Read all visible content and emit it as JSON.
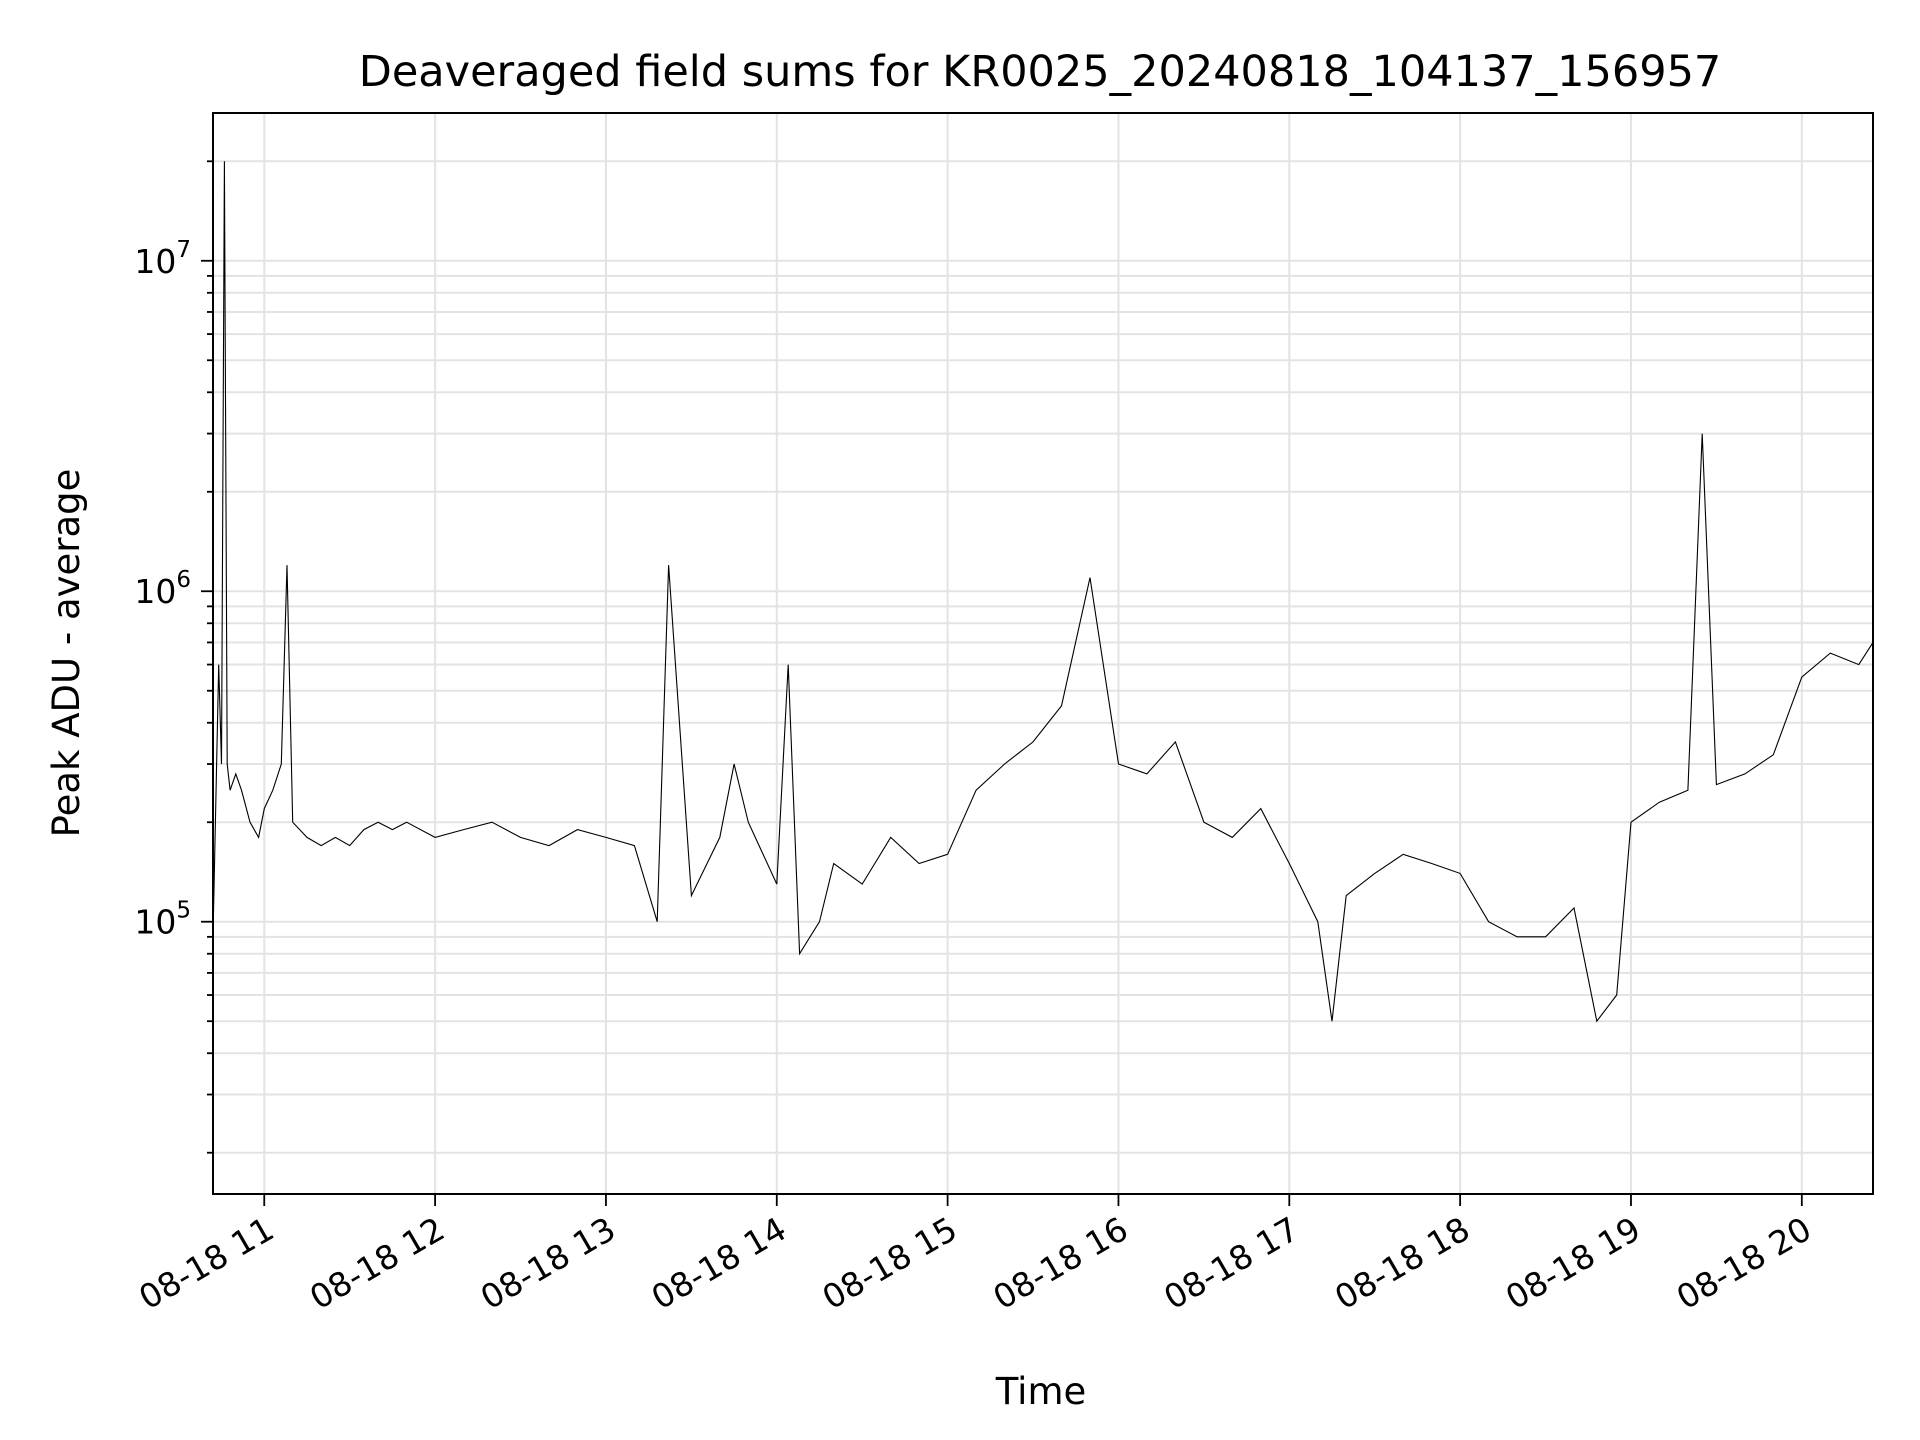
{
  "chart_data": {
    "type": "line",
    "title": "Deaveraged field sums for KR0025_20240818_104137_156957",
    "xlabel": "Time",
    "ylabel": "Peak ADU - average",
    "y_scale": "log",
    "ylim": [
      15000,
      28000000
    ],
    "xlim": [
      "2024-08-18T10:42",
      "2024-08-18T20:25"
    ],
    "grid": true,
    "legend": "none",
    "line_color": "#000000",
    "x_ticks": [
      {
        "time": "2024-08-18T11:00",
        "label": "08-18 11"
      },
      {
        "time": "2024-08-18T12:00",
        "label": "08-18 12"
      },
      {
        "time": "2024-08-18T13:00",
        "label": "08-18 13"
      },
      {
        "time": "2024-08-18T14:00",
        "label": "08-18 14"
      },
      {
        "time": "2024-08-18T15:00",
        "label": "08-18 15"
      },
      {
        "time": "2024-08-18T16:00",
        "label": "08-18 16"
      },
      {
        "time": "2024-08-18T17:00",
        "label": "08-18 17"
      },
      {
        "time": "2024-08-18T18:00",
        "label": "08-18 18"
      },
      {
        "time": "2024-08-18T19:00",
        "label": "08-18 19"
      },
      {
        "time": "2024-08-18T20:00",
        "label": "08-18 20"
      }
    ],
    "y_ticks": [
      {
        "value": 100000,
        "base": "10",
        "exp": "5"
      },
      {
        "value": 1000000,
        "base": "10",
        "exp": "6"
      },
      {
        "value": 10000000,
        "base": "10",
        "exp": "7"
      }
    ],
    "series": [
      {
        "x": [
          "2024-08-18T10:42",
          "2024-08-18T10:44",
          "2024-08-18T10:45",
          "2024-08-18T10:46",
          "2024-08-18T10:47",
          "2024-08-18T10:48",
          "2024-08-18T10:50",
          "2024-08-18T10:52",
          "2024-08-18T10:55",
          "2024-08-18T10:58",
          "2024-08-18T11:00",
          "2024-08-18T11:03",
          "2024-08-18T11:06",
          "2024-08-18T11:08",
          "2024-08-18T11:10",
          "2024-08-18T11:15",
          "2024-08-18T11:20",
          "2024-08-18T11:25",
          "2024-08-18T11:30",
          "2024-08-18T11:35",
          "2024-08-18T11:40",
          "2024-08-18T11:45",
          "2024-08-18T11:50",
          "2024-08-18T12:00",
          "2024-08-18T12:10",
          "2024-08-18T12:20",
          "2024-08-18T12:30",
          "2024-08-18T12:40",
          "2024-08-18T12:50",
          "2024-08-18T13:00",
          "2024-08-18T13:10",
          "2024-08-18T13:18",
          "2024-08-18T13:22",
          "2024-08-18T13:30",
          "2024-08-18T13:40",
          "2024-08-18T13:45",
          "2024-08-18T13:50",
          "2024-08-18T14:00",
          "2024-08-18T14:04",
          "2024-08-18T14:08",
          "2024-08-18T14:15",
          "2024-08-18T14:20",
          "2024-08-18T14:30",
          "2024-08-18T14:40",
          "2024-08-18T14:50",
          "2024-08-18T15:00",
          "2024-08-18T15:10",
          "2024-08-18T15:20",
          "2024-08-18T15:30",
          "2024-08-18T15:40",
          "2024-08-18T15:50",
          "2024-08-18T16:00",
          "2024-08-18T16:10",
          "2024-08-18T16:20",
          "2024-08-18T16:30",
          "2024-08-18T16:40",
          "2024-08-18T16:50",
          "2024-08-18T17:00",
          "2024-08-18T17:10",
          "2024-08-18T17:15",
          "2024-08-18T17:20",
          "2024-08-18T17:30",
          "2024-08-18T17:40",
          "2024-08-18T17:50",
          "2024-08-18T18:00",
          "2024-08-18T18:10",
          "2024-08-18T18:20",
          "2024-08-18T18:30",
          "2024-08-18T18:40",
          "2024-08-18T18:48",
          "2024-08-18T18:55",
          "2024-08-18T19:00",
          "2024-08-18T19:10",
          "2024-08-18T19:20",
          "2024-08-18T19:25",
          "2024-08-18T19:30",
          "2024-08-18T19:40",
          "2024-08-18T19:50",
          "2024-08-18T20:00",
          "2024-08-18T20:10",
          "2024-08-18T20:20",
          "2024-08-18T20:25"
        ],
        "y": [
          90000,
          600000,
          300000,
          20000000,
          300000,
          250000,
          280000,
          250000,
          200000,
          180000,
          220000,
          250000,
          300000,
          1200000,
          200000,
          180000,
          170000,
          180000,
          170000,
          190000,
          200000,
          190000,
          200000,
          180000,
          190000,
          200000,
          180000,
          170000,
          190000,
          180000,
          170000,
          100000,
          1200000,
          120000,
          180000,
          300000,
          200000,
          130000,
          600000,
          80000,
          100000,
          150000,
          130000,
          180000,
          150000,
          160000,
          250000,
          300000,
          350000,
          450000,
          1100000,
          300000,
          280000,
          350000,
          200000,
          180000,
          220000,
          150000,
          100000,
          50000,
          120000,
          140000,
          160000,
          150000,
          140000,
          100000,
          90000,
          90000,
          110000,
          50000,
          60000,
          200000,
          230000,
          250000,
          3000000,
          260000,
          280000,
          320000,
          550000,
          650000,
          600000,
          700000
        ]
      }
    ]
  }
}
